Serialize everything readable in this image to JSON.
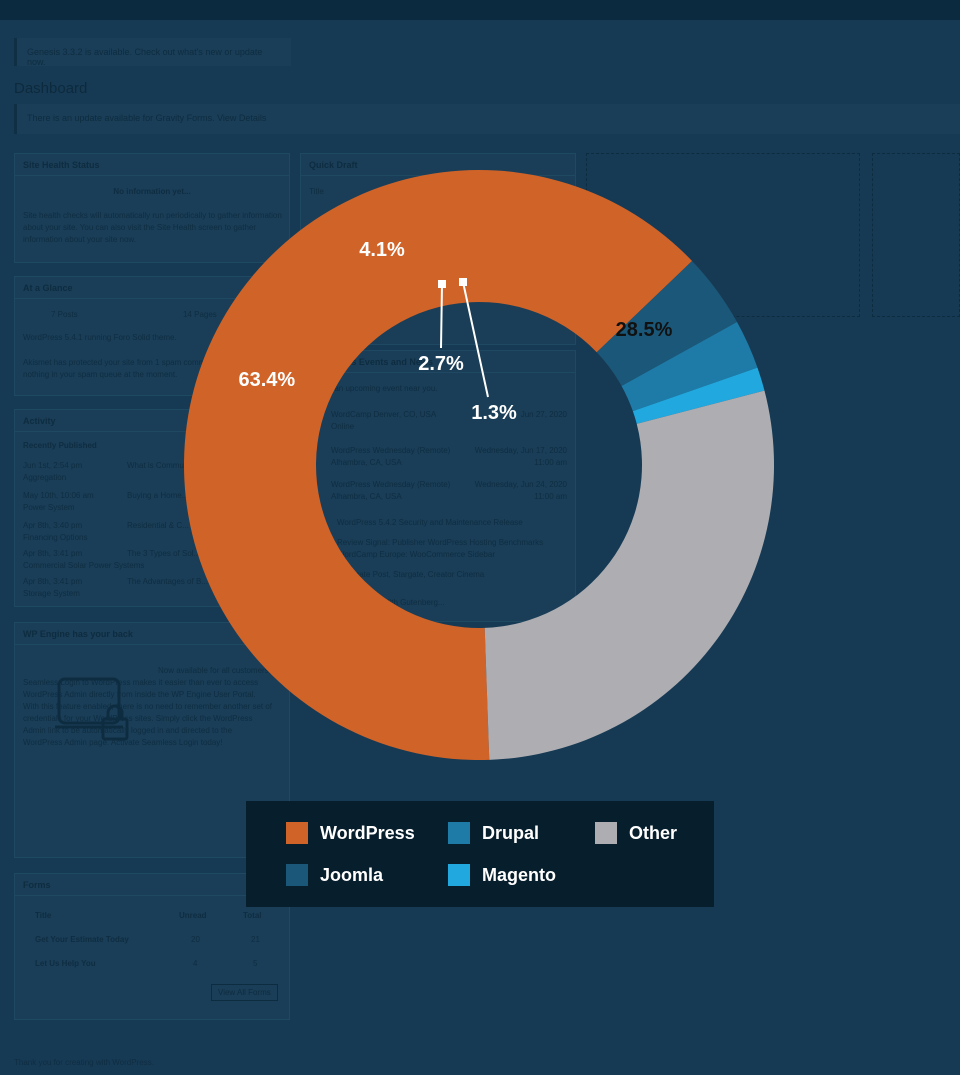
{
  "chart_data": {
    "type": "pie",
    "donut": true,
    "title": "",
    "categories": [
      "WordPress",
      "Joomla",
      "Drupal",
      "Magento",
      "Other"
    ],
    "values": [
      63.4,
      4.1,
      2.7,
      1.3,
      28.5
    ],
    "labels": [
      "63.4%",
      "4.1%",
      "2.7%",
      "1.3%",
      "28.5%"
    ],
    "colors": [
      "#d06328",
      "#1b5778",
      "#1e7ba7",
      "#20a8df",
      "#aeaeb2"
    ],
    "legend_position": "bottom",
    "legend": [
      {
        "name": "WordPress",
        "color": "#d06328"
      },
      {
        "name": "Drupal",
        "color": "#1e7ba7"
      },
      {
        "name": "Other",
        "color": "#aeaeb2"
      },
      {
        "name": "Joomla",
        "color": "#1b5778"
      },
      {
        "name": "Magento",
        "color": "#20a8df"
      }
    ]
  },
  "background": {
    "notice1": "Genesis 3.3.2 is available. Check out what's new or update now.",
    "page_title": "Dashboard",
    "notice2": "There is an update available for Gravity Forms. View Details",
    "site_health_title": "Site Health Status",
    "site_health_status": "No information yet...",
    "site_health_text": "Site health checks will automatically run periodically to gather information about your site. You can also visit the Site Health screen to gather information about your site now.",
    "quick_draft_title": "Quick Draft",
    "quick_draft_field": "Title",
    "at_a_glance_title": "At a Glance",
    "glance_posts": "7 Posts",
    "glance_pages": "14 Pages",
    "glance_text": "WordPress 5.4.1 running Foro Solid theme.",
    "akismet_text": "Akismet has protected your site from 1 spam comment already. There's nothing in your spam queue at the moment.",
    "activity_title": "Activity",
    "recently_published": "Recently Published",
    "activity_rows": [
      {
        "date": "Jun 1st, 2:54 pm",
        "sub": "Aggregation",
        "title": "What is Commu..."
      },
      {
        "date": "May 10th, 10:06 am",
        "sub": "Power System",
        "title": "Buying a Home..."
      },
      {
        "date": "Apr 8th, 3:40 pm",
        "sub": "Financing Options",
        "title": "Residential & C..."
      },
      {
        "date": "Apr 8th, 3:41 pm",
        "sub": "Commercial Solar Power Systems",
        "title": "The 3 Types of Sol..."
      },
      {
        "date": "Apr 8th, 3:41 pm",
        "sub": "Storage System",
        "title": "The Advantages of B..."
      }
    ],
    "events_title": "WordPress Events and News",
    "events_hint": "Attend an upcoming event near you.",
    "events": [
      {
        "name": "WordCamp Denver, CO, USA",
        "sub": "Online",
        "when": "Jun 27, 2020"
      },
      {
        "name": "WordPress Wednesday (Remote)",
        "sub": "Alhambra, CA, USA",
        "when": "Wednesday, Jun 17, 2020 11:00 am"
      },
      {
        "name": "WordPress Wednesday (Remote)",
        "sub": "Alhambra, CA, USA",
        "when": "Wednesday, Jun 24, 2020 11:00 am"
      }
    ],
    "news": [
      "WordPress 5.4.2 Security and Maintenance Release",
      "Review Signal: Publisher WordPress Hosting Benchmarks",
      "WordCamp Europe: WooCommerce Sidebar",
      "Duplicate Post, Stargate, Creator Cinema",
      "Block Editor With Gutenberg..."
    ],
    "wpengine_title": "WP Engine has your back",
    "wpengine_text": "Now available for all customers, Seamless Login to WordPress makes it easier than ever to access WordPress Admin directly from inside the WP Engine User Portal. With this feature enabled, there is no need to remember another set of credentials for your WordPress sites. Simply click the WordPress Admin link to be automatically logged in and directed to the WordPress Admin page. Activate Seamless Login today!",
    "forms_title": "Forms",
    "forms_cols": [
      "Title",
      "Unread",
      "Total"
    ],
    "forms_rows": [
      {
        "title": "Get Your Estimate Today",
        "unread": "20",
        "total": "21"
      },
      {
        "title": "Let Us Help You",
        "unread": "4",
        "total": "5"
      }
    ],
    "view_all_forms": "View All Forms",
    "footer": "Thank you for creating with WordPress."
  }
}
